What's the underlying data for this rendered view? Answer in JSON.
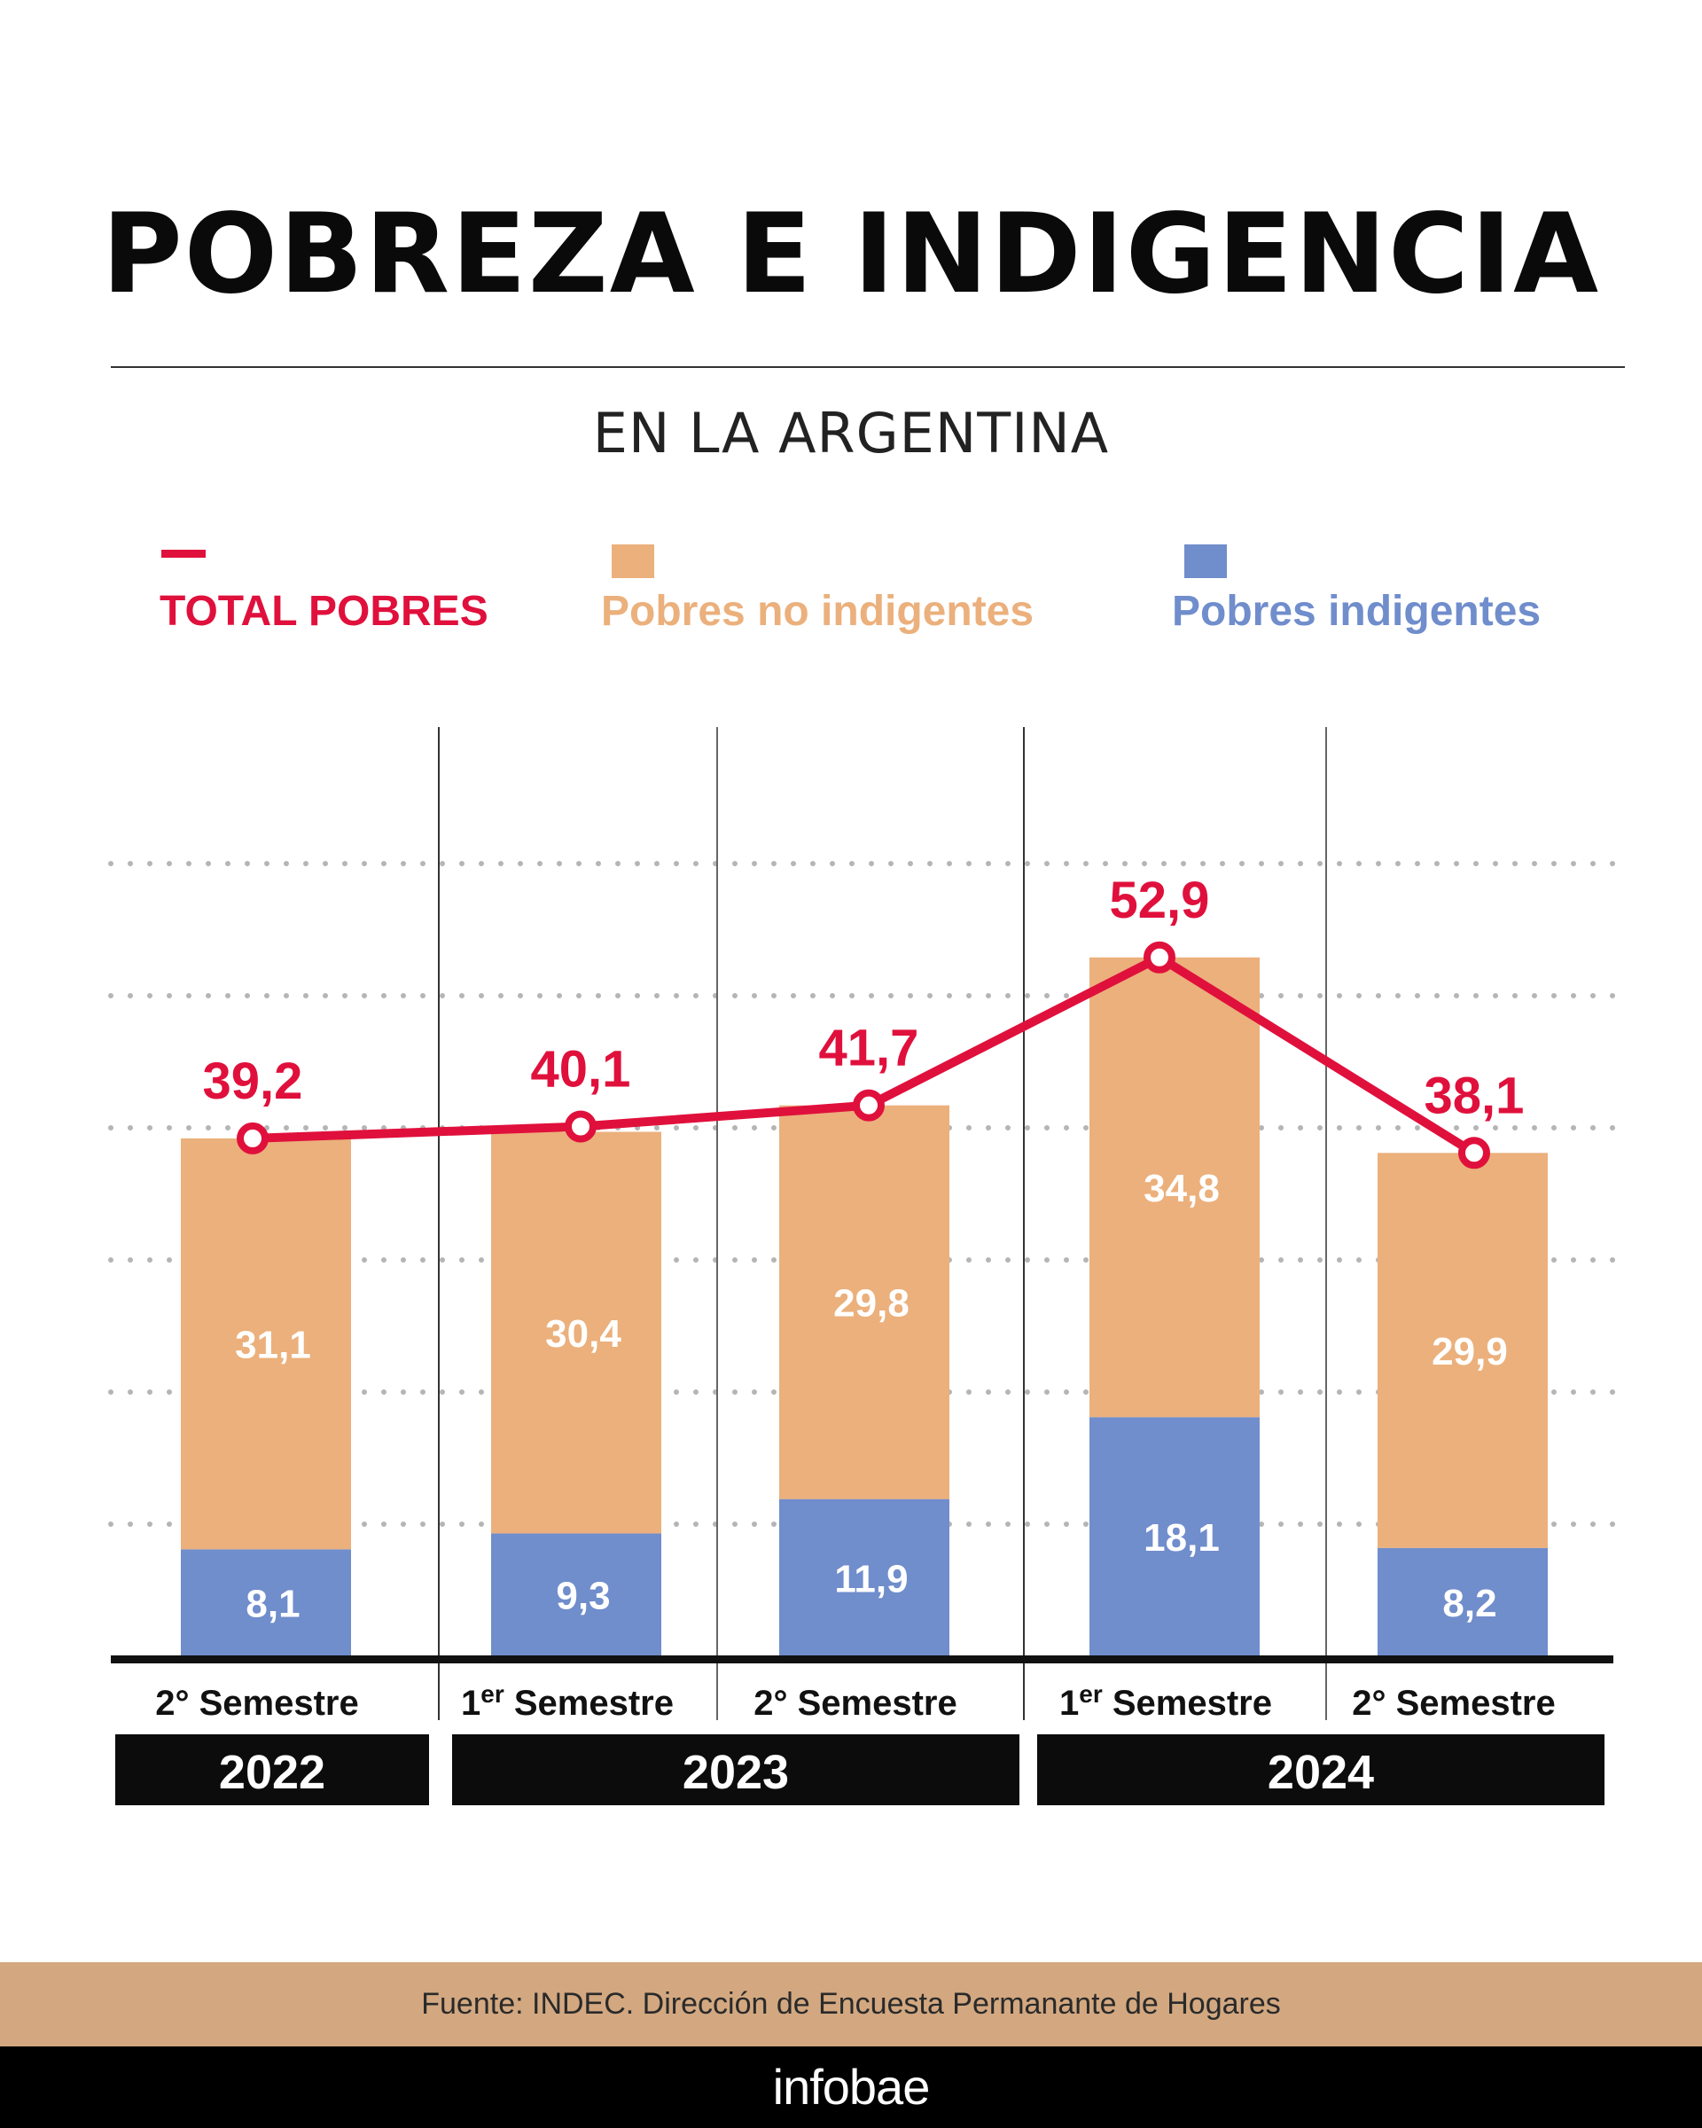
{
  "header": {
    "title": "POBREZA E INDIGENCIA",
    "subtitle": "EN LA ARGENTINA"
  },
  "legend": {
    "total": {
      "label": "TOTAL POBRES",
      "color": "#e0103c"
    },
    "no_indigentes": {
      "label": "Pobres no indigentes",
      "color": "#ebb07c"
    },
    "indigentes": {
      "label": "Pobres indigentes",
      "color": "#708dcc"
    }
  },
  "chart_data": {
    "type": "bar",
    "stacked": true,
    "categories": [
      "2° Semestre 2022",
      "1er Semestre 2023",
      "2° Semestre 2023",
      "1er Semestre 2024",
      "2° Semestre 2024"
    ],
    "semester_labels": [
      {
        "prefix": "2°",
        "sup": "",
        "word": "Semestre"
      },
      {
        "prefix": "1",
        "sup": "er",
        "word": "Semestre"
      },
      {
        "prefix": "2°",
        "sup": "",
        "word": "Semestre"
      },
      {
        "prefix": "1",
        "sup": "er",
        "word": "Semestre"
      },
      {
        "prefix": "2°",
        "sup": "",
        "word": "Semestre"
      }
    ],
    "years": [
      {
        "label": "2022",
        "from": 0,
        "to": 0
      },
      {
        "label": "2023",
        "from": 1,
        "to": 2
      },
      {
        "label": "2024",
        "from": 3,
        "to": 4
      }
    ],
    "series": [
      {
        "name": "Pobres indigentes",
        "values": [
          8.1,
          9.3,
          11.9,
          18.1,
          8.2
        ],
        "labels": [
          "8,1",
          "9,3",
          "11,9",
          "18,1",
          "8,2"
        ]
      },
      {
        "name": "Pobres no indigentes",
        "values": [
          31.1,
          30.4,
          29.8,
          34.8,
          29.9
        ],
        "labels": [
          "31,1",
          "30,4",
          "29,8",
          "34,8",
          "29,9"
        ]
      }
    ],
    "line": {
      "name": "TOTAL POBRES",
      "values": [
        39.2,
        40.1,
        41.7,
        52.9,
        38.1
      ],
      "labels": [
        "39,2",
        "40,1",
        "41,7",
        "52,9",
        "38,1"
      ]
    },
    "ylim": [
      0,
      60
    ],
    "grid": "dotted"
  },
  "footer": {
    "source": "Fuente: INDEC. Dirección de Encuesta Permanante de Hogares",
    "brand": "infobae"
  }
}
